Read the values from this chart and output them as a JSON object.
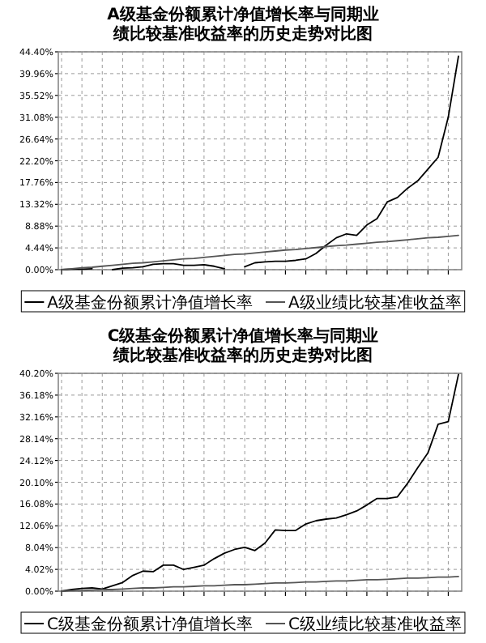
{
  "chart_data": [
    {
      "type": "line",
      "title": "A级基金份额累计净值增长率与同期业绩比较基准收益率的历史走势对比图",
      "categories": [
        null,
        null,
        null,
        null,
        null,
        null,
        null,
        null,
        null,
        null,
        null,
        null,
        null,
        null,
        null,
        null,
        null,
        null,
        null,
        null,
        null,
        null,
        null,
        null,
        null,
        null,
        null,
        null,
        null,
        null,
        null,
        null,
        null,
        null,
        null,
        null,
        null,
        null,
        null,
        null
      ],
      "ylim": [
        0,
        44.4
      ],
      "yticks": [
        {
          "value": 0,
          "label": "0.00%"
        },
        {
          "value": 4.44,
          "label": "4.44%"
        },
        {
          "value": 8.88,
          "label": "8.88%"
        },
        {
          "value": 13.32,
          "label": "13.32%"
        },
        {
          "value": 17.76,
          "label": "17.76%"
        },
        {
          "value": 22.2,
          "label": "22.20%"
        },
        {
          "value": 26.64,
          "label": "26.64%"
        },
        {
          "value": 31.08,
          "label": "31.08%"
        },
        {
          "value": 35.52,
          "label": "35.52%"
        },
        {
          "value": 39.96,
          "label": "39.96%"
        },
        {
          "value": 44.4,
          "label": "44.40%"
        }
      ],
      "grid": true,
      "legend": "bottom",
      "series": [
        {
          "name": "A级基金份额累计净值增长率",
          "color": "#000000",
          "values": [
            0,
            0.1,
            0.1,
            0.2,
            null,
            0,
            0.3,
            0.4,
            0.6,
            1.1,
            1.2,
            1.2,
            0.9,
            0.9,
            1.0,
            0.7,
            0.2,
            null,
            0.6,
            1.4,
            1.6,
            1.7,
            1.7,
            1.9,
            2.2,
            3.3,
            5.0,
            6.5,
            7.3,
            7.0,
            9.1,
            10.4,
            13.8,
            14.7,
            16.6,
            18.1,
            20.5,
            22.9,
            31.1,
            43.5
          ]
        },
        {
          "name": "A级业绩比较基准收益率",
          "color": "#555555",
          "values": [
            0,
            0.2,
            0.4,
            0.5,
            0.7,
            0.9,
            1.1,
            1.3,
            1.4,
            1.6,
            1.8,
            2.0,
            2.2,
            2.3,
            2.5,
            2.7,
            2.9,
            3.1,
            3.2,
            3.4,
            3.6,
            3.8,
            4.0,
            4.1,
            4.3,
            4.5,
            4.7,
            4.9,
            5.0,
            5.2,
            5.4,
            5.6,
            5.7,
            5.9,
            6.1,
            6.3,
            6.5,
            6.6,
            6.8,
            7.0
          ]
        }
      ]
    },
    {
      "type": "line",
      "title": "C级基金份额累计净值增长率与同期业绩比较基准收益率的历史走势对比图",
      "categories": [
        null,
        null,
        null,
        null,
        null,
        null,
        null,
        null,
        null,
        null,
        null,
        null,
        null,
        null,
        null,
        null,
        null,
        null,
        null,
        null,
        null,
        null,
        null,
        null,
        null,
        null,
        null,
        null,
        null,
        null,
        null,
        null,
        null,
        null,
        null,
        null,
        null,
        null,
        null,
        null
      ],
      "ylim": [
        0,
        40.2
      ],
      "yticks": [
        {
          "value": 0,
          "label": "0.00%"
        },
        {
          "value": 4.02,
          "label": "4.02%"
        },
        {
          "value": 8.04,
          "label": "8.04%"
        },
        {
          "value": 12.06,
          "label": "12.06%"
        },
        {
          "value": 16.08,
          "label": "16.08%"
        },
        {
          "value": 20.1,
          "label": "20.10%"
        },
        {
          "value": 24.12,
          "label": "24.12%"
        },
        {
          "value": 28.14,
          "label": "28.14%"
        },
        {
          "value": 32.16,
          "label": "32.16%"
        },
        {
          "value": 36.18,
          "label": "36.18%"
        },
        {
          "value": 40.2,
          "label": "40.20%"
        }
      ],
      "grid": true,
      "legend": "bottom",
      "series": [
        {
          "name": "C级基金份额累计净值增长率",
          "color": "#000000",
          "values": [
            0,
            0.3,
            0.5,
            0.6,
            0.4,
            1.0,
            1.6,
            2.9,
            3.7,
            3.6,
            4.8,
            4.8,
            4.0,
            4.4,
            4.8,
            6.0,
            7.0,
            7.7,
            8.1,
            7.5,
            8.9,
            11.3,
            11.2,
            11.2,
            12.4,
            13.0,
            13.3,
            13.5,
            14.1,
            14.8,
            15.9,
            17.1,
            17.1,
            17.4,
            19.9,
            22.8,
            25.5,
            30.8,
            31.3,
            40.0
          ]
        },
        {
          "name": "C级业绩比较基准收益率",
          "color": "#555555",
          "values": [
            0,
            0.1,
            0.1,
            0.2,
            0.3,
            0.3,
            0.4,
            0.5,
            0.6,
            0.6,
            0.7,
            0.8,
            0.8,
            0.9,
            1.0,
            1.0,
            1.1,
            1.2,
            1.2,
            1.3,
            1.4,
            1.5,
            1.5,
            1.6,
            1.7,
            1.7,
            1.8,
            1.9,
            1.9,
            2.0,
            2.1,
            2.1,
            2.2,
            2.3,
            2.4,
            2.4,
            2.5,
            2.6,
            2.6,
            2.7
          ]
        }
      ]
    }
  ]
}
